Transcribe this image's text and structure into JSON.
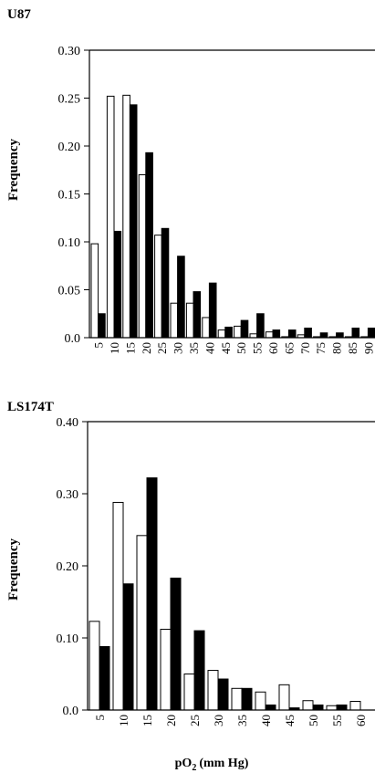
{
  "chart_data": [
    {
      "type": "bar",
      "title": "U87",
      "ylabel": "Frequency",
      "xlabel": "",
      "ylim": [
        0,
        0.3
      ],
      "yticks": [
        "0.0",
        "0.05",
        "0.10",
        "0.15",
        "0.20",
        "0.25",
        "0.30"
      ],
      "categories": [
        "5",
        "10",
        "15",
        "20",
        "25",
        "30",
        "35",
        "40",
        "45",
        "50",
        "55",
        "60",
        "65",
        "70",
        "75",
        "80",
        "85",
        "90"
      ],
      "series": [
        {
          "fill": "#ffffff",
          "values": [
            0.098,
            0.252,
            0.253,
            0.17,
            0.107,
            0.036,
            0.036,
            0.021,
            0.008,
            0.012,
            0.004,
            0.006,
            0.001,
            0.003,
            0.001,
            0.001,
            0.001,
            0.001
          ]
        },
        {
          "fill": "#000000",
          "values": [
            0.025,
            0.111,
            0.243,
            0.193,
            0.114,
            0.085,
            0.048,
            0.057,
            0.011,
            0.018,
            0.025,
            0.008,
            0.008,
            0.01,
            0.005,
            0.005,
            0.01,
            0.01
          ]
        }
      ]
    },
    {
      "type": "bar",
      "title": "LS174T",
      "ylabel": "Frequency",
      "xlabel": "pO2 (mm Hg)",
      "ylim": [
        0,
        0.4
      ],
      "yticks": [
        "0.0",
        "0.10",
        "0.20",
        "0.30",
        "0.40"
      ],
      "categories": [
        "5",
        "10",
        "15",
        "20",
        "25",
        "30",
        "35",
        "40",
        "45",
        "50",
        "55",
        "60"
      ],
      "series": [
        {
          "fill": "#ffffff",
          "values": [
            0.123,
            0.288,
            0.242,
            0.112,
            0.05,
            0.055,
            0.03,
            0.025,
            0.035,
            0.013,
            0.006,
            0.012
          ]
        },
        {
          "fill": "#000000",
          "values": [
            0.088,
            0.175,
            0.322,
            0.183,
            0.11,
            0.043,
            0.03,
            0.007,
            0.003,
            0.007,
            0.007,
            0.0
          ]
        }
      ]
    }
  ],
  "shared_xlabel": {
    "main": "pO",
    "sub": "2",
    "rest": "(mm Hg)"
  }
}
